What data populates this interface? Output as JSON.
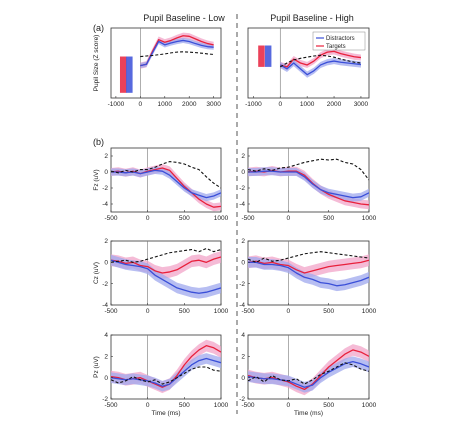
{
  "colors": {
    "distractors": "#3a4fd8",
    "distractors_band": "#9fa8ee",
    "targets": "#e8203c",
    "targets_band": "#f1a4c8",
    "baseline": "#111111",
    "divider": "#555555"
  },
  "figure": {
    "panel_a_label": "(a)",
    "panel_b_label": "(b)",
    "col_low_title": "Pupil Baseline - Low",
    "col_high_title": "Pupil Baseline - High"
  },
  "chart_data": [
    {
      "id": "pupil-low",
      "type": "line",
      "panel": "(a)",
      "column": "Pupil Baseline - Low",
      "title": "Pupil Baseline - Low",
      "xlabel": "",
      "ylabel": "Pupil Size (Z score)",
      "xlim": [
        -1200,
        3300
      ],
      "ylim": [
        -1.6,
        1.1
      ],
      "xticks": [
        -1000,
        0,
        1000,
        2000,
        3000
      ],
      "xtick_labels": [
        "-1000",
        "0",
        "1000",
        "2000",
        "3000"
      ],
      "legend": "none",
      "bars": [
        {
          "series": "Targets",
          "x": -700,
          "value": -1.4
        },
        {
          "series": "Distractors",
          "x": -450,
          "value": -1.4
        }
      ],
      "x": [
        0,
        250,
        500,
        750,
        1000,
        1250,
        1500,
        1750,
        2000,
        2250,
        2500,
        2750,
        3000
      ],
      "series": [
        {
          "name": "Targets",
          "values": [
            -0.35,
            -0.3,
            0.2,
            0.65,
            0.55,
            0.62,
            0.72,
            0.8,
            0.78,
            0.68,
            0.58,
            0.5,
            0.45
          ],
          "band": 0.12
        },
        {
          "name": "Distractors",
          "values": [
            -0.35,
            -0.3,
            0.15,
            0.58,
            0.45,
            0.52,
            0.58,
            0.62,
            0.58,
            0.5,
            0.43,
            0.38,
            0.36
          ],
          "band": 0.1
        },
        {
          "name": "Difference",
          "values": [
            0.0,
            0.02,
            0.04,
            0.07,
            0.1,
            0.14,
            0.17,
            0.18,
            0.17,
            0.15,
            0.13,
            0.1,
            0.08
          ],
          "dashed": true
        }
      ]
    },
    {
      "id": "pupil-high",
      "type": "line",
      "panel": "(a)",
      "column": "Pupil Baseline - High",
      "title": "Pupil Baseline - High",
      "xlabel": "",
      "ylabel": "",
      "xlim": [
        -1200,
        3300
      ],
      "ylim": [
        -0.8,
        1.0
      ],
      "xticks": [
        -1000,
        0,
        1000,
        2000,
        3000
      ],
      "xtick_labels": [
        "-1000",
        "0",
        "1000",
        "2000",
        "3000"
      ],
      "legend": "top-right",
      "legend_entries": [
        "Distractors",
        "Targets"
      ],
      "bars": [
        {
          "series": "Targets",
          "x": -700,
          "value": 0.55
        },
        {
          "series": "Distractors",
          "x": -450,
          "value": 0.55
        }
      ],
      "x": [
        0,
        250,
        500,
        750,
        1000,
        1250,
        1500,
        1750,
        2000,
        2250,
        2500,
        2750,
        3000
      ],
      "series": [
        {
          "name": "Targets",
          "values": [
            0.05,
            0.0,
            0.2,
            0.1,
            0.05,
            0.15,
            0.3,
            0.38,
            0.4,
            0.34,
            0.3,
            0.26,
            0.24
          ],
          "band": 0.08
        },
        {
          "name": "Distractors",
          "values": [
            0.05,
            -0.05,
            0.1,
            -0.05,
            -0.2,
            -0.1,
            0.05,
            0.12,
            0.15,
            0.12,
            0.1,
            0.08,
            0.06
          ],
          "band": 0.08
        },
        {
          "name": "Difference",
          "values": [
            0.0,
            0.1,
            0.18,
            0.22,
            0.25,
            0.28,
            0.3,
            0.28,
            0.25,
            0.2,
            0.16,
            0.12,
            0.1
          ],
          "dashed": true
        }
      ]
    },
    {
      "id": "fz-low",
      "type": "line",
      "panel": "(b)",
      "column": "Pupil Baseline - Low",
      "xlabel": "",
      "ylabel": "Fz (uV)",
      "xlim": [
        -500,
        1000
      ],
      "ylim": [
        -5,
        3
      ],
      "xticks": [
        -500,
        0,
        500,
        1000
      ],
      "xtick_labels": [
        "-500",
        "0",
        "500",
        "1000"
      ],
      "yticks": [
        -4,
        -2,
        0,
        2
      ],
      "ytick_labels": [
        "-4",
        "-2",
        "0",
        "2"
      ],
      "x": [
        -500,
        -400,
        -300,
        -200,
        -100,
        0,
        100,
        200,
        300,
        400,
        500,
        600,
        700,
        800,
        900,
        1000
      ],
      "series": [
        {
          "name": "Targets",
          "values": [
            0.0,
            0.1,
            -0.1,
            0.1,
            -0.2,
            0.1,
            0.3,
            0.5,
            0.2,
            -0.8,
            -1.8,
            -2.6,
            -3.4,
            -4.0,
            -4.4,
            -4.3
          ],
          "band": 0.5
        },
        {
          "name": "Distractors",
          "values": [
            0.0,
            0.0,
            -0.1,
            0.0,
            -0.2,
            0.0,
            0.2,
            0.1,
            -0.4,
            -1.2,
            -2.0,
            -2.6,
            -2.9,
            -3.2,
            -3.0,
            -2.6
          ],
          "band": 0.45
        },
        {
          "name": "Difference",
          "values": [
            0.1,
            -0.1,
            0.2,
            0.0,
            0.3,
            0.3,
            0.6,
            1.0,
            1.3,
            1.2,
            1.0,
            0.6,
            0.3,
            -0.6,
            -1.4,
            -2.0
          ],
          "dashed": true
        }
      ]
    },
    {
      "id": "fz-high",
      "type": "line",
      "panel": "(b)",
      "column": "Pupil Baseline - High",
      "xlabel": "",
      "ylabel": "",
      "xlim": [
        -500,
        1000
      ],
      "ylim": [
        -5,
        3
      ],
      "xticks": [
        -500,
        0,
        500,
        1000
      ],
      "xtick_labels": [
        "-500",
        "0",
        "500",
        "1000"
      ],
      "yticks": [
        -4,
        -2,
        0,
        2
      ],
      "ytick_labels": [
        "-4",
        "-2",
        "0",
        "2"
      ],
      "x": [
        -500,
        -400,
        -300,
        -200,
        -100,
        0,
        100,
        200,
        300,
        400,
        500,
        600,
        700,
        800,
        900,
        1000
      ],
      "series": [
        {
          "name": "Targets",
          "values": [
            0.0,
            0.1,
            0.0,
            0.2,
            0.0,
            0.1,
            0.1,
            -0.4,
            -1.4,
            -2.2,
            -2.8,
            -3.2,
            -3.6,
            -3.8,
            -4.0,
            -4.1
          ],
          "band": 0.55
        },
        {
          "name": "Distractors",
          "values": [
            0.0,
            0.0,
            0.1,
            0.1,
            0.0,
            0.0,
            0.0,
            -0.6,
            -1.5,
            -2.2,
            -2.6,
            -2.8,
            -3.0,
            -3.2,
            -3.1,
            -2.6
          ],
          "band": 0.5
        },
        {
          "name": "Difference",
          "values": [
            0.3,
            0.1,
            0.4,
            0.2,
            0.5,
            0.6,
            0.9,
            1.2,
            1.4,
            1.6,
            1.5,
            1.6,
            1.2,
            1.0,
            0.3,
            -1.0
          ],
          "dashed": true
        }
      ]
    },
    {
      "id": "cz-low",
      "type": "line",
      "panel": "(b)",
      "column": "Pupil Baseline - Low",
      "xlabel": "",
      "ylabel": "Cz (uV)",
      "xlim": [
        -500,
        1000
      ],
      "ylim": [
        -4,
        2
      ],
      "xticks": [
        -500,
        0,
        500,
        1000
      ],
      "xtick_labels": [
        "-500",
        "0",
        "500",
        "1000"
      ],
      "yticks": [
        -4,
        -2,
        0,
        2
      ],
      "ytick_labels": [
        "-4",
        "-2",
        "0",
        "2"
      ],
      "x": [
        -500,
        -400,
        -300,
        -200,
        -100,
        0,
        100,
        200,
        300,
        400,
        500,
        600,
        700,
        800,
        900,
        1000
      ],
      "series": [
        {
          "name": "Targets",
          "values": [
            0.2,
            0.1,
            -0.1,
            0.0,
            -0.3,
            -0.4,
            -0.8,
            -1.0,
            -0.9,
            -0.7,
            -0.3,
            0.1,
            0.2,
            0.0,
            0.3,
            0.5
          ],
          "band": 0.55
        },
        {
          "name": "Distractors",
          "values": [
            0.2,
            0.0,
            -0.2,
            -0.3,
            -0.4,
            -0.6,
            -1.2,
            -1.6,
            -2.0,
            -2.4,
            -2.6,
            -2.8,
            -2.9,
            -2.8,
            -2.6,
            -2.4
          ],
          "band": 0.5
        },
        {
          "name": "Difference",
          "values": [
            0.0,
            0.1,
            0.2,
            0.0,
            0.1,
            0.3,
            0.5,
            0.7,
            0.9,
            1.0,
            1.1,
            1.2,
            1.0,
            1.3,
            1.0,
            1.2
          ],
          "dashed": true
        }
      ]
    },
    {
      "id": "cz-high",
      "type": "line",
      "panel": "(b)",
      "column": "Pupil Baseline - High",
      "xlabel": "",
      "ylabel": "",
      "xlim": [
        -500,
        1000
      ],
      "ylim": [
        -4,
        2
      ],
      "xticks": [
        -500,
        0,
        500,
        1000
      ],
      "xtick_labels": [
        "-500",
        "0",
        "500",
        "1000"
      ],
      "yticks": [
        -4,
        -2,
        0,
        2
      ],
      "ytick_labels": [
        "-4",
        "-2",
        "0",
        "2"
      ],
      "x": [
        -500,
        -400,
        -300,
        -200,
        -100,
        0,
        100,
        200,
        300,
        400,
        500,
        600,
        700,
        800,
        900,
        1000
      ],
      "series": [
        {
          "name": "Targets",
          "values": [
            0.0,
            0.1,
            -0.1,
            0.0,
            -0.2,
            -0.3,
            -0.7,
            -1.0,
            -0.8,
            -0.6,
            -0.4,
            -0.3,
            -0.2,
            -0.1,
            0.0,
            0.2
          ],
          "band": 0.55
        },
        {
          "name": "Distractors",
          "values": [
            0.0,
            0.0,
            -0.2,
            -0.2,
            -0.3,
            -0.5,
            -1.0,
            -1.4,
            -1.6,
            -1.9,
            -2.0,
            -2.2,
            -2.1,
            -1.9,
            -1.7,
            -1.4
          ],
          "band": 0.5
        },
        {
          "name": "Difference",
          "values": [
            0.3,
            0.0,
            0.4,
            0.1,
            0.2,
            0.4,
            0.6,
            0.8,
            0.9,
            1.0,
            0.9,
            0.8,
            0.7,
            0.6,
            0.5,
            0.4
          ],
          "dashed": true
        }
      ]
    },
    {
      "id": "pz-low",
      "type": "line",
      "panel": "(b)",
      "column": "Pupil Baseline - Low",
      "xlabel": "Time (ms)",
      "ylabel": "Pz (uV)",
      "xlim": [
        -500,
        1000
      ],
      "ylim": [
        -2,
        4
      ],
      "xticks": [
        -500,
        0,
        500,
        1000
      ],
      "xtick_labels": [
        "-500",
        "0",
        "500",
        "1000"
      ],
      "yticks": [
        -2,
        0,
        2,
        4
      ],
      "ytick_labels": [
        "-2",
        "0",
        "2",
        "4"
      ],
      "x": [
        -500,
        -400,
        -300,
        -200,
        -100,
        0,
        100,
        200,
        300,
        400,
        500,
        600,
        700,
        800,
        900,
        1000
      ],
      "series": [
        {
          "name": "Targets",
          "values": [
            0.1,
            0.0,
            -0.2,
            -0.1,
            0.0,
            -0.3,
            -0.6,
            -0.9,
            -0.6,
            0.2,
            1.2,
            2.0,
            2.6,
            3.0,
            2.8,
            2.4
          ],
          "band": 0.55
        },
        {
          "name": "Distractors",
          "values": [
            0.0,
            -0.1,
            -0.2,
            -0.1,
            -0.2,
            -0.3,
            -0.5,
            -0.8,
            -0.6,
            0.0,
            0.6,
            1.2,
            1.6,
            1.8,
            1.6,
            1.4
          ],
          "band": 0.5
        },
        {
          "name": "Difference",
          "values": [
            -0.2,
            -0.5,
            -0.3,
            0.1,
            -0.2,
            -0.4,
            -0.2,
            -0.6,
            -0.4,
            0.0,
            0.4,
            0.8,
            1.0,
            1.0,
            0.7,
            0.6
          ],
          "dashed": true
        }
      ]
    },
    {
      "id": "pz-high",
      "type": "line",
      "panel": "(b)",
      "column": "Pupil Baseline - High",
      "xlabel": "Time (ms)",
      "ylabel": "",
      "xlim": [
        -500,
        1000
      ],
      "ylim": [
        -2,
        4
      ],
      "xticks": [
        -500,
        0,
        500,
        1000
      ],
      "xtick_labels": [
        "-500",
        "0",
        "500",
        "1000"
      ],
      "yticks": [
        -2,
        0,
        2,
        4
      ],
      "ytick_labels": [
        "-2",
        "0",
        "2",
        "4"
      ],
      "x": [
        -500,
        -400,
        -300,
        -200,
        -100,
        0,
        100,
        200,
        300,
        400,
        500,
        600,
        700,
        800,
        900,
        1000
      ],
      "series": [
        {
          "name": "Targets",
          "values": [
            0.2,
            0.0,
            -0.1,
            0.0,
            -0.2,
            -0.4,
            -0.8,
            -1.1,
            -0.6,
            0.2,
            1.0,
            1.6,
            2.2,
            2.6,
            2.4,
            2.0
          ],
          "band": 0.55
        },
        {
          "name": "Distractors",
          "values": [
            0.1,
            0.0,
            -0.1,
            -0.1,
            -0.2,
            -0.3,
            -0.6,
            -0.9,
            -0.7,
            0.0,
            0.5,
            0.9,
            1.3,
            1.5,
            1.3,
            1.0
          ],
          "band": 0.5
        },
        {
          "name": "Difference",
          "values": [
            -0.3,
            0.1,
            -0.4,
            0.2,
            -0.2,
            -0.3,
            -0.1,
            -0.6,
            -0.2,
            0.3,
            0.6,
            1.0,
            1.4,
            1.2,
            0.8,
            0.6
          ],
          "dashed": true
        }
      ]
    }
  ]
}
